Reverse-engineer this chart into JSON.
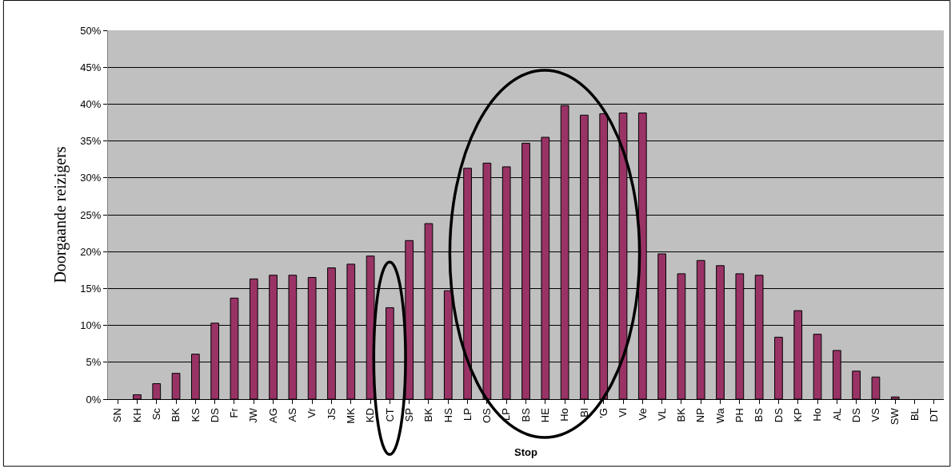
{
  "chart_data": {
    "type": "bar",
    "xlabel": "Stop",
    "ylabel": "Doorgaande reizigers",
    "categories": [
      "SN",
      "KH",
      "Sc",
      "BK",
      "KS",
      "DS",
      "Fr",
      "JW",
      "AG",
      "AS",
      "Vr",
      "JS",
      "MK",
      "KD",
      "CT",
      "SP",
      "BK",
      "HS",
      "LP",
      "OS",
      "LP",
      "BS",
      "HE",
      "Ho",
      "Bl",
      "'G",
      "Vl",
      "Ve",
      "VL",
      "BK",
      "NP",
      "Wa",
      "PH",
      "BS",
      "DS",
      "KP",
      "Ho",
      "AL",
      "DS",
      "VS",
      "SW",
      "BL",
      "DT"
    ],
    "values": [
      0,
      0.6,
      2.1,
      3.5,
      6.1,
      10.3,
      13.7,
      16.3,
      16.8,
      16.8,
      16.5,
      17.8,
      18.3,
      19.4,
      12.4,
      21.5,
      23.8,
      14.7,
      31.3,
      32.0,
      31.5,
      34.7,
      35.5,
      39.8,
      38.5,
      38.7,
      38.8,
      38.8,
      19.7,
      17.0,
      18.8,
      18.1,
      17.0,
      16.8,
      8.4,
      12.0,
      8.8,
      6.6,
      3.8,
      3.0,
      0.3,
      0,
      0
    ],
    "color": "#993366",
    "ylim": [
      0,
      50
    ],
    "yticks": [
      {
        "value": 0,
        "label": "0%"
      },
      {
        "value": 5,
        "label": "5%"
      },
      {
        "value": 10,
        "label": "10%"
      },
      {
        "value": 15,
        "label": "15%"
      },
      {
        "value": 20,
        "label": "20%"
      },
      {
        "value": 25,
        "label": "25%"
      },
      {
        "value": 30,
        "label": "30%"
      },
      {
        "value": 35,
        "label": "35%"
      },
      {
        "value": 40,
        "label": "40%"
      },
      {
        "value": 45,
        "label": "45%"
      },
      {
        "value": 50,
        "label": "50%"
      }
    ],
    "grid": "y"
  }
}
